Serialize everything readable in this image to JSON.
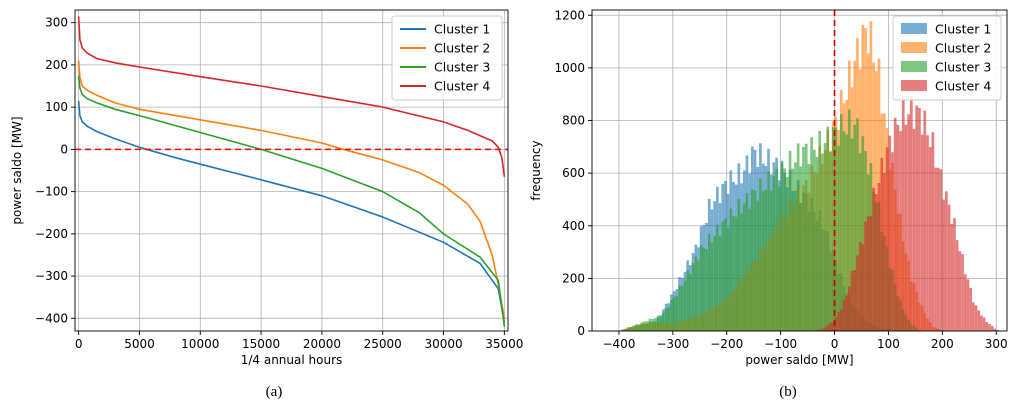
{
  "chart_data": [
    {
      "type": "line",
      "caption": "(a)",
      "xlabel": "1/4 annual hours",
      "ylabel": "power saldo [MW]",
      "xlim": [
        -300,
        35300
      ],
      "ylim": [
        -430,
        330
      ],
      "xticks": [
        0,
        5000,
        10000,
        15000,
        20000,
        25000,
        30000,
        35000
      ],
      "yticks": [
        -400,
        -300,
        -200,
        -100,
        0,
        100,
        200,
        300
      ],
      "grid": true,
      "legend_position": "top-right",
      "hline": {
        "y": 0,
        "color": "#ff0000",
        "style": "dashed"
      },
      "series": [
        {
          "name": "Cluster 1",
          "color": "#1f77b4",
          "x": [
            0,
            100,
            300,
            700,
            1500,
            3000,
            5000,
            8000,
            10000,
            15000,
            20000,
            25000,
            30000,
            33000,
            34500,
            35000
          ],
          "y": [
            115,
            80,
            65,
            55,
            42,
            25,
            5,
            -20,
            -35,
            -72,
            -110,
            -160,
            -220,
            -270,
            -330,
            -410
          ]
        },
        {
          "name": "Cluster 2",
          "color": "#ff7f0e",
          "x": [
            0,
            100,
            300,
            700,
            1500,
            3000,
            5000,
            10000,
            15000,
            20000,
            22000,
            25000,
            28000,
            30000,
            32000,
            33000,
            34000,
            34500,
            35000
          ],
          "y": [
            210,
            170,
            150,
            140,
            128,
            110,
            95,
            70,
            45,
            15,
            -2,
            -25,
            -55,
            -85,
            -130,
            -170,
            -250,
            -320,
            -400
          ]
        },
        {
          "name": "Cluster 3",
          "color": "#2ca02c",
          "x": [
            0,
            100,
            300,
            700,
            1500,
            3000,
            5000,
            10000,
            15000,
            20000,
            25000,
            28000,
            30000,
            33000,
            34500,
            35000
          ],
          "y": [
            175,
            145,
            130,
            120,
            110,
            95,
            80,
            40,
            0,
            -45,
            -100,
            -150,
            -200,
            -255,
            -310,
            -420
          ]
        },
        {
          "name": "Cluster 4",
          "color": "#d62728",
          "x": [
            0,
            100,
            300,
            700,
            1500,
            3000,
            5000,
            10000,
            15000,
            20000,
            25000,
            30000,
            32000,
            34000,
            34500,
            34800,
            35000
          ],
          "y": [
            315,
            260,
            240,
            228,
            215,
            205,
            195,
            172,
            150,
            125,
            100,
            65,
            45,
            20,
            5,
            -20,
            -65
          ]
        }
      ]
    },
    {
      "type": "histogram",
      "caption": "(b)",
      "xlabel": "power saldo [MW]",
      "ylabel": "frequency",
      "xlim": [
        -450,
        320
      ],
      "ylim": [
        0,
        1220
      ],
      "xticks": [
        -400,
        -300,
        -200,
        -100,
        0,
        100,
        200,
        300
      ],
      "yticks": [
        0,
        200,
        400,
        600,
        800,
        1000,
        1200
      ],
      "grid": true,
      "legend_position": "top-right",
      "vline": {
        "x": 0,
        "color": "#cc0000",
        "style": "dashed"
      },
      "bin_width": 5,
      "series": [
        {
          "name": "Cluster 1",
          "color": "#1f77b4",
          "opacity": 0.6,
          "x": [
            -400,
            -330,
            -300,
            -260,
            -230,
            -200,
            -170,
            -150,
            -120,
            -100,
            -80,
            -50,
            -20,
            0,
            20,
            40,
            60,
            80,
            100,
            110
          ],
          "y": [
            0,
            40,
            140,
            300,
            480,
            560,
            600,
            680,
            640,
            620,
            560,
            500,
            400,
            280,
            160,
            80,
            40,
            15,
            5,
            0
          ]
        },
        {
          "name": "Cluster 2",
          "color": "#ff7f0e",
          "opacity": 0.6,
          "x": [
            -400,
            -380,
            -350,
            -300,
            -250,
            -200,
            -150,
            -100,
            -50,
            -20,
            0,
            20,
            40,
            60,
            80,
            100,
            120,
            140,
            160,
            180,
            200
          ],
          "y": [
            0,
            15,
            30,
            30,
            60,
            120,
            260,
            420,
            560,
            680,
            780,
            900,
            1040,
            1150,
            1000,
            700,
            440,
            220,
            100,
            20,
            0
          ]
        },
        {
          "name": "Cluster 3",
          "color": "#2ca02c",
          "opacity": 0.6,
          "x": [
            -400,
            -320,
            -290,
            -250,
            -200,
            -150,
            -100,
            -60,
            -30,
            0,
            20,
            40,
            60,
            80,
            100,
            120,
            140,
            160
          ],
          "y": [
            0,
            60,
            150,
            300,
            420,
            520,
            600,
            680,
            700,
            750,
            780,
            780,
            660,
            480,
            280,
            120,
            30,
            0
          ]
        },
        {
          "name": "Cluster 4",
          "color": "#d62728",
          "opacity": 0.6,
          "x": [
            -40,
            -20,
            0,
            20,
            50,
            80,
            100,
            120,
            140,
            160,
            180,
            200,
            220,
            240,
            260,
            280,
            300,
            310
          ],
          "y": [
            0,
            10,
            40,
            120,
            340,
            560,
            700,
            800,
            840,
            820,
            720,
            560,
            420,
            250,
            100,
            40,
            5,
            0
          ]
        }
      ]
    }
  ]
}
